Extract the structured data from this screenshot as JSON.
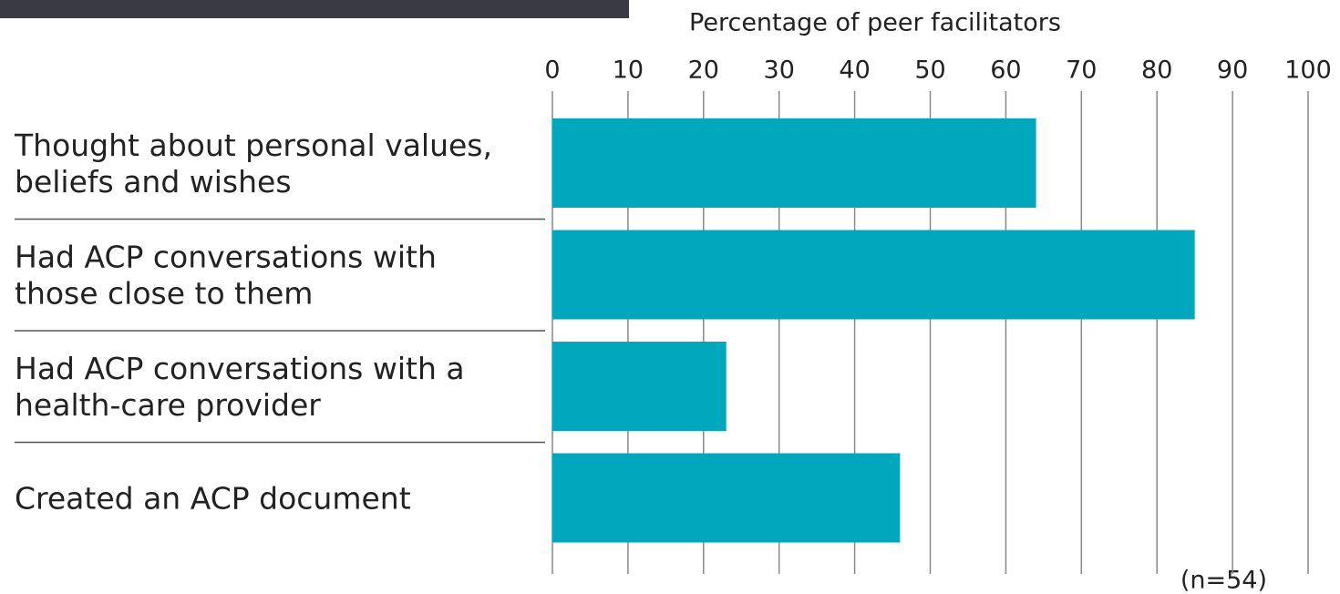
{
  "chart_data": {
    "type": "bar",
    "orientation": "horizontal",
    "x_label": "Percentage of peer facilitators",
    "categories": [
      [
        "Thought about personal values,",
        "beliefs and wishes"
      ],
      [
        "Had ACP conversations with",
        "those close to them"
      ],
      [
        "Had ACP conversations with a",
        "health-care provider"
      ],
      [
        "Created an ACP document"
      ]
    ],
    "values": [
      64,
      85,
      23,
      46
    ],
    "color": "#00a8bd",
    "xlim": [
      0,
      100
    ],
    "xticks": [
      0,
      10,
      20,
      30,
      40,
      50,
      60,
      70,
      80,
      90,
      100
    ],
    "grid": true,
    "note": "(n=54)"
  }
}
